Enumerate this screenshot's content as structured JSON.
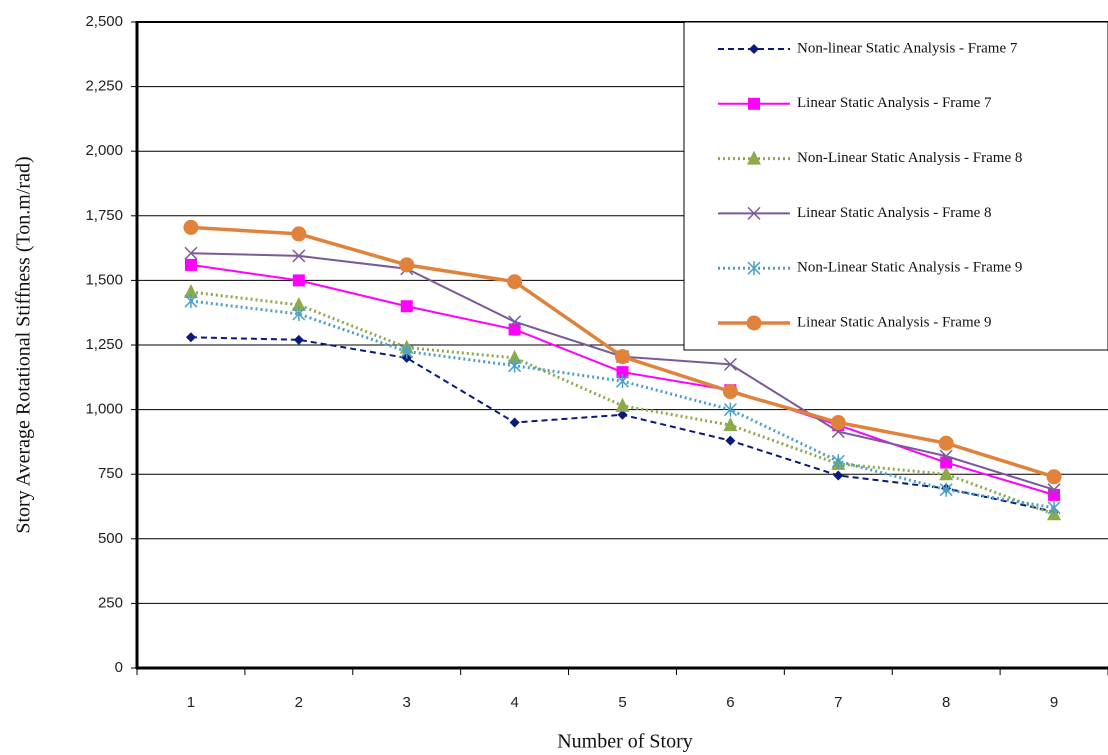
{
  "chart_data": {
    "type": "line",
    "x_label": "Number of Story",
    "y_label": "Story Average Rotational Stiffness (Ton.m/rad)",
    "categories": [
      "1",
      "2",
      "3",
      "4",
      "5",
      "6",
      "7",
      "8",
      "9"
    ],
    "series": [
      {
        "name": "Non-linear Static Analysis - Frame 7",
        "color": "#0a1a7a",
        "dash": "dashed",
        "marker": "diamond",
        "values": [
          1280,
          1270,
          1200,
          950,
          980,
          880,
          745,
          695,
          605
        ]
      },
      {
        "name": "Linear Static Analysis - Frame 7",
        "color": "#ff00ff",
        "dash": "solid",
        "marker": "square",
        "values": [
          1560,
          1500,
          1400,
          1310,
          1145,
          1075,
          940,
          795,
          670
        ]
      },
      {
        "name": "Non-Linear Static Analysis - Frame 8",
        "color": "#8caa4a",
        "dash": "dotted",
        "marker": "triangle",
        "values": [
          1455,
          1405,
          1240,
          1200,
          1015,
          940,
          790,
          750,
          595
        ]
      },
      {
        "name": "Linear Static Analysis - Frame 8",
        "color": "#7a5a9a",
        "dash": "solid",
        "marker": "cross",
        "values": [
          1605,
          1595,
          1545,
          1340,
          1205,
          1175,
          915,
          820,
          690
        ]
      },
      {
        "name": "Non-Linear Static Analysis - Frame 9",
        "color": "#4aa0c8",
        "dash": "dotted",
        "marker": "asterisk",
        "values": [
          1420,
          1370,
          1225,
          1170,
          1110,
          1000,
          800,
          690,
          620
        ]
      },
      {
        "name": "Linear Static Analysis - Frame 9",
        "color": "#e0823a",
        "dash": "solid",
        "marker": "circle",
        "values": [
          1705,
          1680,
          1560,
          1495,
          1205,
          1070,
          950,
          870,
          740
        ]
      }
    ],
    "ylim": [
      0,
      2500
    ],
    "yticks": [
      0,
      250,
      500,
      750,
      {
        "value": 1000,
        "label": "1,000"
      },
      {
        "value": 1250,
        "label": "1,250"
      },
      {
        "value": 1500,
        "label": "1,500"
      },
      {
        "value": 1750,
        "label": "1,750"
      },
      {
        "value": 2000,
        "label": "2,000"
      },
      {
        "value": 2250,
        "label": "2,250"
      },
      {
        "value": 2500,
        "label": "2,500"
      }
    ],
    "grid": true,
    "legend": "top-right"
  }
}
